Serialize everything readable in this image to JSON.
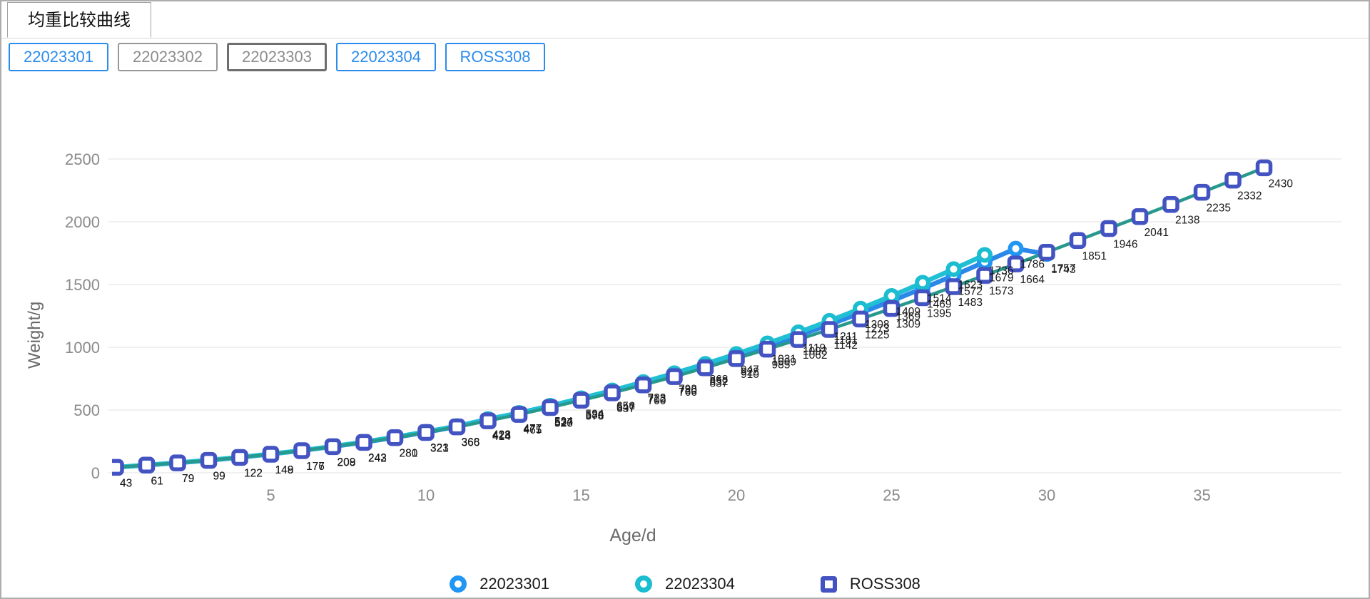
{
  "window": {
    "tab_title": "均重比较曲线"
  },
  "filter_buttons": [
    {
      "label": "22023301",
      "state": "selected"
    },
    {
      "label": "22023302",
      "state": "default"
    },
    {
      "label": "22023303",
      "state": "focused"
    },
    {
      "label": "22023304",
      "state": "selected"
    },
    {
      "label": "ROSS308",
      "state": "selected"
    }
  ],
  "colors": {
    "accent_blue": "#2b8cec",
    "series_blue": "#2b87e8",
    "series_cyan": "#20bfd4",
    "ross_marker_indigo": "#4353c2",
    "ross_line_teal": "#27998c",
    "grid": "#ececec",
    "tick_text": "#8a8a8a",
    "axis_title_text": "#6a6a6a",
    "data_label_text": "#191919"
  },
  "chart_data": {
    "type": "line",
    "title": "均重比较曲线",
    "xlabel": "Age/d",
    "ylabel": "Weight/g",
    "x_ticks": [
      5,
      10,
      15,
      20,
      25,
      30,
      35
    ],
    "y_ticks": [
      0,
      500,
      1000,
      1500,
      2000,
      2500
    ],
    "xlim": [
      0,
      38
    ],
    "ylim": [
      0,
      2840
    ],
    "grid": true,
    "legend_position": "bottom",
    "series": [
      {
        "name": "22023301",
        "marker": "circle",
        "marker_color": "#2196f3",
        "line_color": "#2b87e8",
        "line_width": 6.5,
        "labels_from_day": 0,
        "days": [
          0,
          1,
          2,
          3,
          4,
          5,
          6,
          7,
          8,
          9,
          10,
          11,
          12,
          13,
          14,
          15,
          16,
          17,
          18,
          19,
          20,
          21,
          22,
          23,
          24,
          25,
          26,
          27,
          28,
          29,
          30
        ],
        "values": [
          43,
          61,
          79,
          99,
          122,
          149,
          177,
          209,
          243,
          281,
          323,
          368,
          423,
          471,
          527,
          586,
          647,
          712,
          780,
          852,
          928,
          1009,
          1093,
          1181,
          1273,
          1369,
          1469,
          1572,
          1679,
          1786,
          1743
        ]
      },
      {
        "name": "22023304",
        "marker": "circle",
        "marker_color": "#1cbdd0",
        "line_color": "#20bfd4",
        "line_width": 6.5,
        "labels_from_day": 12,
        "days": [
          0,
          1,
          2,
          3,
          4,
          5,
          6,
          7,
          8,
          9,
          10,
          11,
          12,
          13,
          14,
          15,
          16,
          17,
          18,
          19,
          20,
          21,
          22,
          23,
          24,
          25,
          26,
          27,
          28
        ],
        "values": [
          44,
          62,
          80,
          101,
          124,
          150,
          178,
          211,
          246,
          285,
          327,
          372,
          428,
          477,
          534,
          594,
          656,
          723,
          793,
          868,
          947,
          1031,
          1119,
          1211,
          1308,
          1409,
          1514,
          1623,
          1736
        ]
      },
      {
        "name": "ROSS308",
        "marker": "square",
        "marker_color": "#4353c2",
        "line_color": "#27998c",
        "line_width": 4.5,
        "labels_from_day": 0,
        "days": [
          0,
          1,
          2,
          3,
          4,
          5,
          6,
          7,
          8,
          9,
          10,
          11,
          12,
          13,
          14,
          15,
          16,
          17,
          18,
          19,
          20,
          21,
          22,
          23,
          24,
          25,
          26,
          27,
          28,
          29,
          30,
          31,
          32,
          33,
          34,
          35,
          36,
          37
        ],
        "values": [
          43,
          61,
          79,
          99,
          122,
          148,
          176,
          208,
          242,
          280,
          321,
          366,
          414,
          465,
          520,
          578,
          637,
          700,
          766,
          837,
          910,
          985,
          1062,
          1142,
          1225,
          1309,
          1395,
          1483,
          1573,
          1664,
          1757,
          1851,
          1946,
          2041,
          2138,
          2235,
          2332,
          2430
        ]
      }
    ]
  }
}
